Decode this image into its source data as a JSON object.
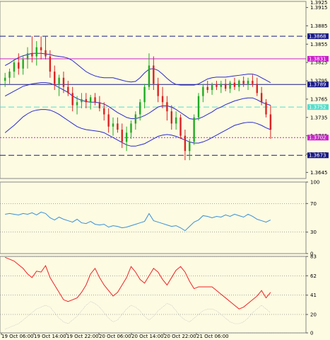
{
  "colors": {
    "background": "#fdfbe2",
    "up_candle": "#22aa22",
    "down_candle": "#dd2222",
    "bollinger": "#2a2acc",
    "hline_blue": "#1a1a88",
    "hline_magenta": "#cc22cc",
    "hline_cyan": "#55ddcc",
    "rsi": "#3a8fd8",
    "stoch": "#ee2222",
    "stoch_signal": "#bbbbbb",
    "grid": "#777777"
  },
  "chart_data": [
    {
      "type": "candlestick",
      "ylim": [
        1.3635,
        1.3925
      ],
      "y_ticks": [
        "1.3915",
        "1.3885",
        "1.3855",
        "1.3825",
        "1.3795",
        "1.3765",
        "1.3735",
        "1.3705",
        "1.3675",
        "1.3645"
      ],
      "top_value": "1.3925",
      "levels": [
        {
          "value": 1.3868,
          "label": "1.3868",
          "color": "#1a1a88",
          "style": "dashed"
        },
        {
          "value": 1.3831,
          "label": "1.3831",
          "color": "#cc22cc",
          "style": "solid"
        },
        {
          "value": 1.3789,
          "label": "1.3789",
          "color": "#1a1a88",
          "style": "solid"
        },
        {
          "value": 1.3752,
          "label": "1.3752",
          "color": "#55ddcc",
          "style": "dashed"
        },
        {
          "value": 1.3702,
          "label": "1.3702",
          "color": "#cc22cc",
          "style": "dotted"
        },
        {
          "value": 1.3673,
          "label": "1.3673",
          "color": "#1a1a88",
          "style": "dashed"
        }
      ],
      "candles": [
        [
          1.3795,
          1.3808,
          1.3785,
          1.38
        ],
        [
          1.38,
          1.3815,
          1.379,
          1.381
        ],
        [
          1.381,
          1.383,
          1.38,
          1.3825
        ],
        [
          1.3825,
          1.384,
          1.3805,
          1.3815
        ],
        [
          1.3815,
          1.3835,
          1.3805,
          1.383
        ],
        [
          1.383,
          1.385,
          1.3815,
          1.384
        ],
        [
          1.384,
          1.3868,
          1.3825,
          1.3835
        ],
        [
          1.3835,
          1.386,
          1.382,
          1.385
        ],
        [
          1.385,
          1.3868,
          1.383,
          1.3845
        ],
        [
          1.3845,
          1.3868,
          1.383,
          1.3835
        ],
        [
          1.3835,
          1.3845,
          1.38,
          1.381
        ],
        [
          1.381,
          1.382,
          1.378,
          1.379
        ],
        [
          1.379,
          1.3805,
          1.377,
          1.38
        ],
        [
          1.38,
          1.381,
          1.3775,
          1.3785
        ],
        [
          1.3785,
          1.3795,
          1.377,
          1.3775
        ],
        [
          1.3775,
          1.3785,
          1.3745,
          1.3755
        ],
        [
          1.3755,
          1.377,
          1.374,
          1.376
        ],
        [
          1.376,
          1.3775,
          1.375,
          1.3765
        ],
        [
          1.3765,
          1.3775,
          1.375,
          1.376
        ],
        [
          1.376,
          1.3772,
          1.3748,
          1.3768
        ],
        [
          1.3768,
          1.3775,
          1.3755,
          1.376
        ],
        [
          1.376,
          1.377,
          1.3745,
          1.375
        ],
        [
          1.375,
          1.376,
          1.373,
          1.374
        ],
        [
          1.374,
          1.375,
          1.371,
          1.372
        ],
        [
          1.372,
          1.3735,
          1.3705,
          1.3725
        ],
        [
          1.3725,
          1.3735,
          1.371,
          1.3715
        ],
        [
          1.3715,
          1.3725,
          1.3685,
          1.3695
        ],
        [
          1.3695,
          1.372,
          1.368,
          1.371
        ],
        [
          1.371,
          1.373,
          1.37,
          1.3725
        ],
        [
          1.3725,
          1.3745,
          1.3715,
          1.374
        ],
        [
          1.374,
          1.3765,
          1.373,
          1.376
        ],
        [
          1.376,
          1.379,
          1.375,
          1.3785
        ],
        [
          1.3785,
          1.384,
          1.378,
          1.382
        ],
        [
          1.382,
          1.3835,
          1.378,
          1.379
        ],
        [
          1.379,
          1.38,
          1.376,
          1.377
        ],
        [
          1.377,
          1.3785,
          1.375,
          1.376
        ],
        [
          1.376,
          1.377,
          1.373,
          1.3745
        ],
        [
          1.3745,
          1.3755,
          1.3715,
          1.3725
        ],
        [
          1.3725,
          1.3745,
          1.3715,
          1.3735
        ],
        [
          1.3735,
          1.374,
          1.37,
          1.3705
        ],
        [
          1.3705,
          1.3715,
          1.3665,
          1.368
        ],
        [
          1.368,
          1.37,
          1.3665,
          1.3695
        ],
        [
          1.3695,
          1.374,
          1.369,
          1.3735
        ],
        [
          1.3735,
          1.3775,
          1.373,
          1.377
        ],
        [
          1.377,
          1.379,
          1.376,
          1.3785
        ],
        [
          1.3785,
          1.3795,
          1.3775,
          1.378
        ],
        [
          1.378,
          1.3792,
          1.3772,
          1.3788
        ],
        [
          1.3788,
          1.3795,
          1.378,
          1.3785
        ],
        [
          1.3785,
          1.3795,
          1.3775,
          1.379
        ],
        [
          1.379,
          1.3798,
          1.3778,
          1.3782
        ],
        [
          1.3782,
          1.3795,
          1.3775,
          1.3792
        ],
        [
          1.3792,
          1.38,
          1.378,
          1.3785
        ],
        [
          1.3785,
          1.3797,
          1.3778,
          1.3795
        ],
        [
          1.3795,
          1.3802,
          1.3785,
          1.379
        ],
        [
          1.379,
          1.38,
          1.378,
          1.3795
        ],
        [
          1.3795,
          1.3805,
          1.3785,
          1.379
        ],
        [
          1.379,
          1.38,
          1.377,
          1.3775
        ],
        [
          1.3775,
          1.3785,
          1.3755,
          1.376
        ],
        [
          1.376,
          1.3765,
          1.3735,
          1.374
        ],
        [
          1.374,
          1.3755,
          1.37,
          1.3715
        ]
      ],
      "bollinger": {
        "upper": [
          1.382,
          1.3824,
          1.3829,
          1.3833,
          1.3836,
          1.3838,
          1.384,
          1.384,
          1.384,
          1.3839,
          1.3838,
          1.3836,
          1.3835,
          1.3834,
          1.3832,
          1.3828,
          1.3822,
          1.3816,
          1.381,
          1.3806,
          1.3803,
          1.3801,
          1.38,
          1.38,
          1.38,
          1.3798,
          1.3796,
          1.3794,
          1.3793,
          1.3794,
          1.38,
          1.3808,
          1.3814,
          1.3815,
          1.3812,
          1.3806,
          1.3799,
          1.3793,
          1.3789,
          1.3788,
          1.3788,
          1.3788,
          1.3788,
          1.379,
          1.3794,
          1.3798,
          1.38,
          1.3801,
          1.3801,
          1.3801,
          1.3802,
          1.3803,
          1.3804,
          1.3805,
          1.3806,
          1.3806,
          1.3804,
          1.38,
          1.3796,
          1.3792
        ],
        "middle": [
          1.377,
          1.3774,
          1.3778,
          1.3782,
          1.3786,
          1.3788,
          1.379,
          1.3791,
          1.3792,
          1.3792,
          1.3791,
          1.3788,
          1.3784,
          1.378,
          1.3776,
          1.377,
          1.3766,
          1.3763,
          1.3761,
          1.376,
          1.376,
          1.3759,
          1.3757,
          1.3753,
          1.3748,
          1.3743,
          1.3739,
          1.3735,
          1.3733,
          1.3733,
          1.3735,
          1.3738,
          1.3742,
          1.3747,
          1.3752,
          1.3754,
          1.3754,
          1.3752,
          1.3748,
          1.3743,
          1.3738,
          1.3733,
          1.3732,
          1.3733,
          1.3736,
          1.374,
          1.3744,
          1.3749,
          1.3752,
          1.3756,
          1.3759,
          1.3762,
          1.3764,
          1.3766,
          1.3767,
          1.3767,
          1.3764,
          1.376,
          1.3757,
          1.3755
        ],
        "lower": [
          1.371,
          1.3716,
          1.3722,
          1.3729,
          1.3736,
          1.3741,
          1.3745,
          1.3747,
          1.3748,
          1.3748,
          1.3747,
          1.3744,
          1.374,
          1.3735,
          1.373,
          1.3725,
          1.372,
          1.3717,
          1.3715,
          1.3714,
          1.3713,
          1.3712,
          1.371,
          1.3706,
          1.3702,
          1.3698,
          1.3694,
          1.369,
          1.3688,
          1.3688,
          1.369,
          1.3692,
          1.3696,
          1.37,
          1.3704,
          1.3706,
          1.3707,
          1.3706,
          1.3704,
          1.3701,
          1.3698,
          1.3695,
          1.3693,
          1.3693,
          1.3695,
          1.3698,
          1.3702,
          1.3706,
          1.371,
          1.3714,
          1.3718,
          1.3722,
          1.3724,
          1.3726,
          1.3727,
          1.3727,
          1.3725,
          1.3722,
          1.3718,
          1.3715
        ]
      }
    },
    {
      "type": "line",
      "ylim": [
        0,
        100
      ],
      "y_ticks": [
        "100",
        "70",
        "30",
        "0"
      ],
      "levels": [
        70,
        30
      ],
      "values": [
        55,
        56,
        55,
        54,
        56,
        55,
        57,
        54,
        58,
        56,
        50,
        47,
        51,
        48,
        46,
        44,
        48,
        43,
        42,
        45,
        41,
        40,
        41,
        37,
        39,
        38,
        36,
        37,
        39,
        41,
        43,
        45,
        56,
        46,
        44,
        42,
        40,
        38,
        39,
        36,
        32,
        38,
        44,
        47,
        53,
        52,
        50,
        52,
        51,
        54,
        52,
        55,
        53,
        51,
        55,
        52,
        48,
        46,
        44,
        47
      ]
    },
    {
      "type": "line",
      "ylim": [
        0,
        83
      ],
      "y_ticks": [
        "83",
        "62",
        "41",
        "20",
        "0"
      ],
      "series": [
        {
          "values": [
            82,
            80,
            78,
            74,
            70,
            64,
            60,
            67,
            66,
            73,
            60,
            52,
            44,
            36,
            34,
            36,
            38,
            44,
            52,
            64,
            70,
            60,
            52,
            46,
            40,
            44,
            52,
            60,
            72,
            66,
            58,
            54,
            62,
            70,
            66,
            58,
            52,
            60,
            68,
            72,
            66,
            56,
            48,
            50,
            50,
            50,
            50,
            46,
            42,
            38,
            34,
            30,
            26,
            28,
            32,
            36,
            40,
            46,
            38,
            44
          ]
        },
        {
          "values": [
            4,
            6,
            8,
            10,
            14,
            18,
            22,
            26,
            28,
            30,
            28,
            22,
            16,
            12,
            10,
            14,
            18,
            24,
            30,
            34,
            32,
            28,
            22,
            16,
            12,
            14,
            20,
            26,
            30,
            28,
            24,
            18,
            14,
            18,
            24,
            28,
            32,
            30,
            24,
            18,
            14,
            12,
            16,
            20,
            24,
            26,
            26,
            24,
            20,
            16,
            12,
            10,
            10,
            12,
            16,
            22,
            26,
            30,
            26,
            22
          ]
        }
      ]
    }
  ],
  "x_labels": [
    "19 Oct 06:00",
    "19 Oct 14:00",
    "19 Oct 22:00",
    "20 Oct 06:00",
    "20 Oct 14:00",
    "20 Oct 22:00",
    "21 Oct 06:00"
  ]
}
